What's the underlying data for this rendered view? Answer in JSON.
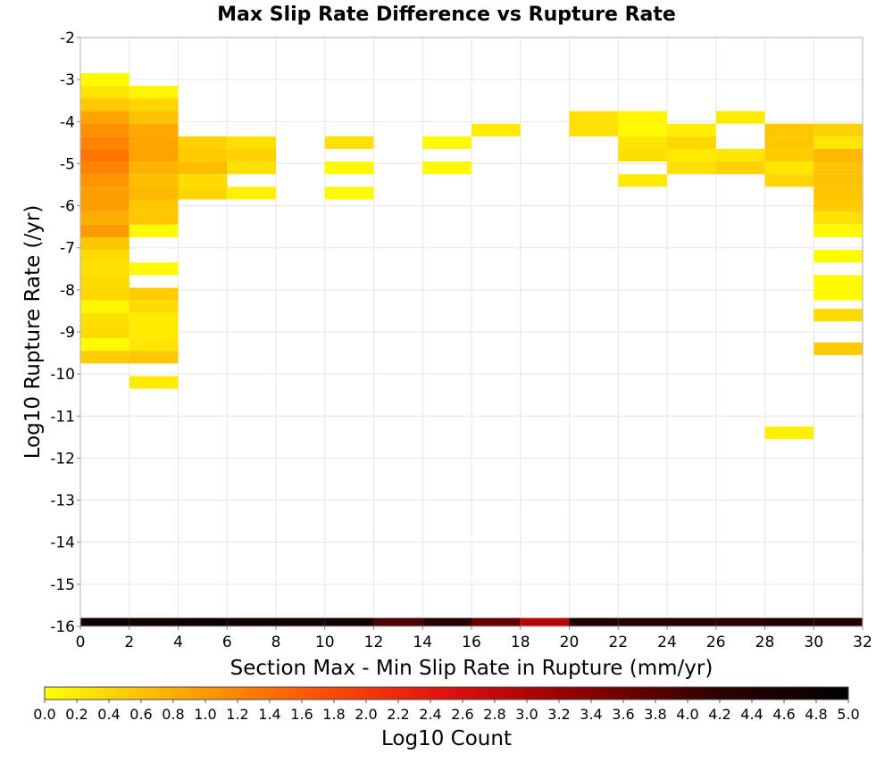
{
  "chart_data": {
    "type": "heatmap",
    "title": "Max Slip Rate Difference vs Rupture Rate",
    "xlabel": "Section Max - Min Slip Rate in Rupture (mm/yr)",
    "ylabel": "Log10 Rupture Rate (/yr)",
    "xlim": [
      0,
      32
    ],
    "ylim": [
      -16,
      -2
    ],
    "x_ticks": [
      "0",
      "2",
      "4",
      "6",
      "8",
      "10",
      "12",
      "14",
      "16",
      "18",
      "20",
      "22",
      "24",
      "26",
      "28",
      "30",
      "32"
    ],
    "y_ticks": [
      "-2",
      "-3",
      "-4",
      "-5",
      "-6",
      "-7",
      "-8",
      "-9",
      "-10",
      "-11",
      "-12",
      "-13",
      "-14",
      "-15",
      "-16"
    ],
    "grid": true,
    "bin_width_x": 2,
    "bin_height_y": 0.3,
    "colorbar": {
      "label": "Log10 Count",
      "min": 0.0,
      "max": 5.0,
      "ticks": [
        "0.0",
        "0.2",
        "0.4",
        "0.6",
        "0.8",
        "1.0",
        "1.2",
        "1.4",
        "1.6",
        "1.8",
        "2.0",
        "2.2",
        "2.4",
        "2.6",
        "2.8",
        "3.0",
        "3.2",
        "3.4",
        "3.6",
        "3.8",
        "4.0",
        "4.2",
        "4.4",
        "4.6",
        "4.8",
        "5.0"
      ],
      "placement": "bottom",
      "colors": [
        "#ffff00",
        "#ffaa00",
        "#ff5500",
        "#e01010",
        "#8b0000",
        "#300000",
        "#000000"
      ]
    },
    "cells": [
      [
        0,
        -3.0,
        0.05
      ],
      [
        0,
        -3.3,
        0.25
      ],
      [
        0,
        -3.6,
        0.55
      ],
      [
        0,
        -3.9,
        0.9
      ],
      [
        0,
        -4.2,
        1.1
      ],
      [
        0,
        -4.5,
        1.2
      ],
      [
        0,
        -4.8,
        1.35
      ],
      [
        0,
        -5.1,
        1.2
      ],
      [
        0,
        -5.4,
        1.05
      ],
      [
        0,
        -5.7,
        0.95
      ],
      [
        0,
        -6.0,
        0.95
      ],
      [
        0,
        -6.3,
        0.8
      ],
      [
        0,
        -6.6,
        1.0
      ],
      [
        0,
        -6.9,
        0.55
      ],
      [
        0,
        -7.2,
        0.35
      ],
      [
        0,
        -7.5,
        0.3
      ],
      [
        0,
        -7.8,
        0.35
      ],
      [
        0,
        -8.1,
        0.4
      ],
      [
        0,
        -8.4,
        0.1
      ],
      [
        0,
        -8.7,
        0.3
      ],
      [
        0,
        -9.0,
        0.35
      ],
      [
        0,
        -9.3,
        0.05
      ],
      [
        0,
        -9.6,
        0.5
      ],
      [
        2,
        -3.3,
        0.1
      ],
      [
        2,
        -3.6,
        0.4
      ],
      [
        2,
        -3.9,
        0.6
      ],
      [
        2,
        -4.2,
        0.85
      ],
      [
        2,
        -4.5,
        0.9
      ],
      [
        2,
        -4.8,
        0.9
      ],
      [
        2,
        -5.1,
        0.75
      ],
      [
        2,
        -5.4,
        0.65
      ],
      [
        2,
        -5.7,
        0.7
      ],
      [
        2,
        -6.0,
        0.55
      ],
      [
        2,
        -6.3,
        0.55
      ],
      [
        2,
        -6.6,
        0.05
      ],
      [
        2,
        -7.5,
        0.05
      ],
      [
        2,
        -8.1,
        0.5
      ],
      [
        2,
        -8.4,
        0.35
      ],
      [
        2,
        -8.7,
        0.2
      ],
      [
        2,
        -9.0,
        0.2
      ],
      [
        2,
        -9.3,
        0.25
      ],
      [
        2,
        -9.6,
        0.55
      ],
      [
        2,
        -10.2,
        0.2
      ],
      [
        4,
        -4.5,
        0.45
      ],
      [
        4,
        -4.8,
        0.5
      ],
      [
        4,
        -5.1,
        0.65
      ],
      [
        4,
        -5.4,
        0.35
      ],
      [
        4,
        -5.7,
        0.4
      ],
      [
        6,
        -4.5,
        0.3
      ],
      [
        6,
        -4.8,
        0.45
      ],
      [
        6,
        -5.1,
        0.3
      ],
      [
        6,
        -5.7,
        0.15
      ],
      [
        10,
        -4.5,
        0.3
      ],
      [
        10,
        -5.1,
        0.05
      ],
      [
        10,
        -5.7,
        0.05
      ],
      [
        14,
        -4.5,
        0.05
      ],
      [
        14,
        -5.1,
        0.05
      ],
      [
        16,
        -4.2,
        0.2
      ],
      [
        20,
        -3.9,
        0.3
      ],
      [
        20,
        -4.2,
        0.3
      ],
      [
        22,
        -3.9,
        0.1
      ],
      [
        22,
        -4.2,
        0.05
      ],
      [
        22,
        -4.5,
        0.25
      ],
      [
        22,
        -4.8,
        0.3
      ],
      [
        22,
        -5.4,
        0.2
      ],
      [
        24,
        -4.2,
        0.15
      ],
      [
        24,
        -4.5,
        0.4
      ],
      [
        24,
        -4.8,
        0.2
      ],
      [
        24,
        -5.1,
        0.3
      ],
      [
        26,
        -3.9,
        0.2
      ],
      [
        26,
        -4.8,
        0.25
      ],
      [
        26,
        -5.1,
        0.45
      ],
      [
        28,
        -4.2,
        0.55
      ],
      [
        28,
        -4.5,
        0.55
      ],
      [
        28,
        -4.8,
        0.5
      ],
      [
        28,
        -5.1,
        0.25
      ],
      [
        28,
        -5.4,
        0.4
      ],
      [
        28,
        -11.4,
        0.15
      ],
      [
        30,
        -4.2,
        0.45
      ],
      [
        30,
        -4.5,
        0.25
      ],
      [
        30,
        -4.8,
        0.7
      ],
      [
        30,
        -5.1,
        0.6
      ],
      [
        30,
        -5.4,
        0.6
      ],
      [
        30,
        -5.7,
        0.55
      ],
      [
        30,
        -6.0,
        0.5
      ],
      [
        30,
        -6.3,
        0.3
      ],
      [
        30,
        -6.6,
        0.05
      ],
      [
        30,
        -7.2,
        0.05
      ],
      [
        30,
        -7.8,
        0.05
      ],
      [
        30,
        -8.1,
        0.05
      ],
      [
        30,
        -8.6,
        0.35
      ],
      [
        30,
        -9.4,
        0.5
      ]
    ],
    "bottom_row": {
      "y": -16.0,
      "height": 0.2,
      "values": [
        4.7,
        4.6,
        4.8,
        4.6,
        4.6,
        4.6,
        3.9,
        4.3,
        3.7,
        2.9,
        4.4,
        4.3,
        4.3,
        4.2,
        4.5,
        4.4
      ]
    }
  }
}
